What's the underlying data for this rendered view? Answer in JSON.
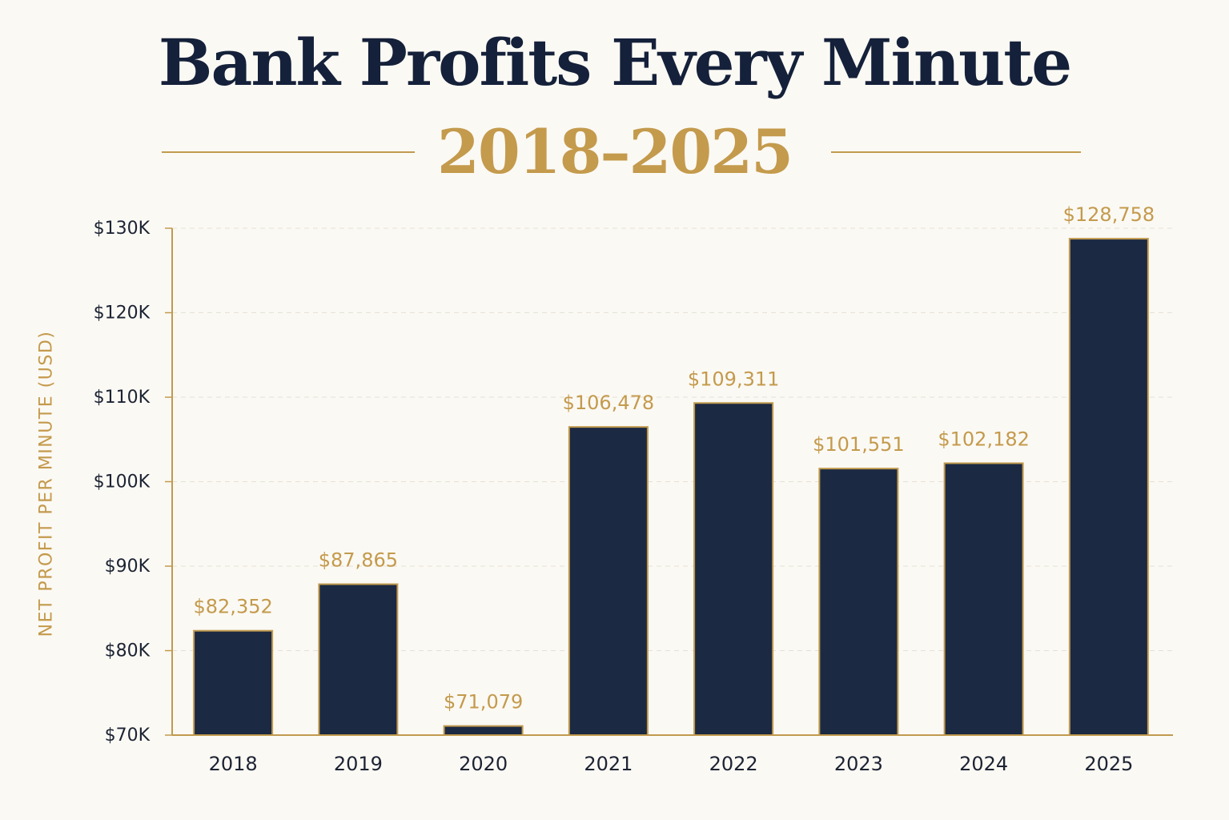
{
  "chart_data": {
    "type": "bar",
    "title": "Bank Profits Every Minute",
    "subtitle": "2018–2025",
    "xlabel": "",
    "ylabel": "NET PROFIT PER MINUTE (USD)",
    "categories": [
      "2018",
      "2019",
      "2020",
      "2021",
      "2022",
      "2023",
      "2024",
      "2025"
    ],
    "values": [
      82352,
      87865,
      71079,
      106478,
      109311,
      101551,
      102182,
      128758
    ],
    "data_labels": [
      "$82,352",
      "$87,865",
      "$71,079",
      "$106,478",
      "$109,311",
      "$101,551",
      "$102,182",
      "$128,758"
    ],
    "ylim": [
      70000,
      130000
    ],
    "yticks": [
      70000,
      80000,
      90000,
      100000,
      110000,
      120000,
      130000
    ],
    "ytick_labels": [
      "$70K",
      "$80K",
      "$90K",
      "$100K",
      "$110K",
      "$120K",
      "$130K"
    ],
    "grid": true,
    "legend": false,
    "colors": {
      "bar_fill": "#1b2943",
      "bar_border": "#c19a4e",
      "accent": "#c49a4c",
      "title": "#15213a",
      "tick_text": "#1c2333",
      "axis": "#c19a4e",
      "grid": "#e6e1d6"
    }
  }
}
